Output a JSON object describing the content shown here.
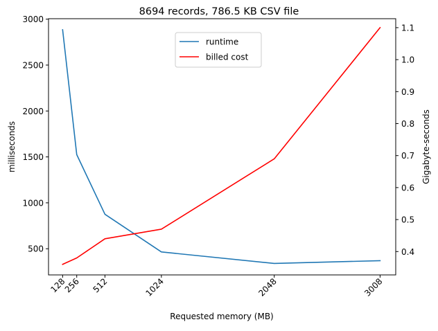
{
  "chart_data": {
    "type": "line",
    "title": "8694 records, 786.5 KB CSV file",
    "xlabel": "Requested memory (MB)",
    "ylabel_left": "milliseconds",
    "ylabel_right": "Gigabyte-seconds",
    "x": [
      128,
      256,
      512,
      1024,
      2048,
      3008
    ],
    "x_tick_labels": [
      "128",
      "256",
      "512",
      "1024",
      "2048",
      "3008"
    ],
    "y_left_ticks": [
      500,
      1000,
      1500,
      2000,
      2500,
      3000
    ],
    "y_left_tick_labels": [
      "500",
      "1000",
      "1500",
      "2000",
      "2500",
      "3000"
    ],
    "y_right_ticks": [
      0.4,
      0.5,
      0.6,
      0.7,
      0.8,
      0.9,
      1.0,
      1.1
    ],
    "y_right_tick_labels": [
      "0.4",
      "0.5",
      "0.6",
      "0.7",
      "0.8",
      "0.9",
      "1.0",
      "1.1"
    ],
    "xlim": [
      0,
      3150
    ],
    "y_left_lim": [
      215,
      3005
    ],
    "y_right_lim": [
      0.327,
      1.128
    ],
    "grid": false,
    "legend_position": "top-center",
    "series": [
      {
        "name": "runtime",
        "axis": "left",
        "color": "#1f77b4",
        "values": [
          2885,
          1525,
          875,
          465,
          340,
          370
        ]
      },
      {
        "name": "billed cost",
        "axis": "right",
        "color": "#ff0000",
        "values": [
          0.36,
          0.38,
          0.44,
          0.47,
          0.69,
          1.1
        ]
      }
    ]
  }
}
